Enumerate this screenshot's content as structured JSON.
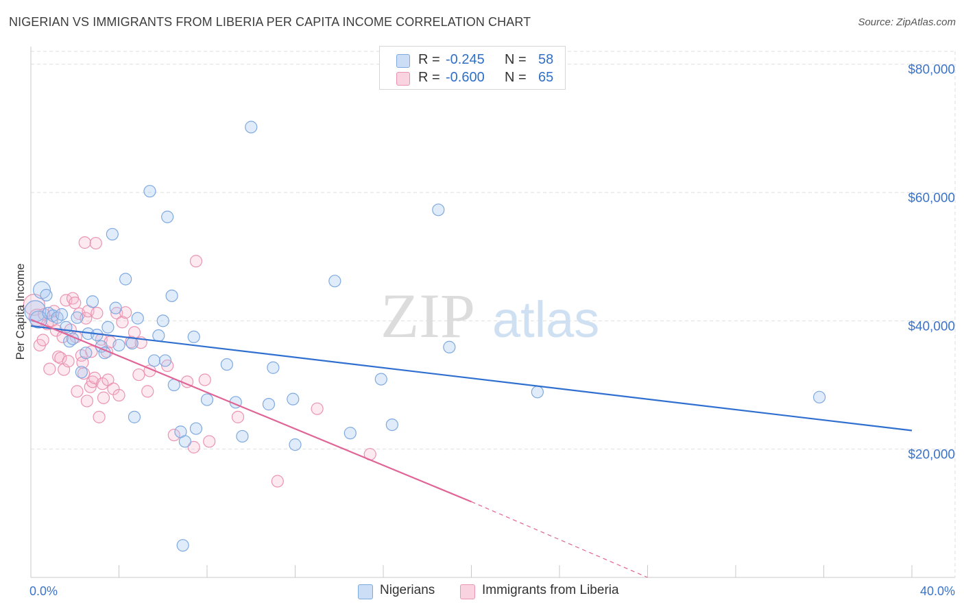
{
  "title": "NIGERIAN VS IMMIGRANTS FROM LIBERIA PER CAPITA INCOME CORRELATION CHART",
  "source": "Source: ZipAtlas.com",
  "watermark": {
    "zip": "ZIP",
    "atlas": "atlas"
  },
  "legend": {
    "r_label": "R =",
    "n_label": "N =",
    "rows": [
      {
        "r": "-0.245",
        "n": "58",
        "color": "#a9c8f0"
      },
      {
        "r": "-0.600",
        "n": "65",
        "color": "#f5b8cc"
      }
    ]
  },
  "bottom_legend": [
    {
      "label": "Nigerians",
      "color": "#a9c8f0"
    },
    {
      "label": "Immigrants from Liberia",
      "color": "#f5b8cc"
    }
  ],
  "colors": {
    "blue_fill": "rgba(169,200,240,0.35)",
    "blue_stroke": "#7ea9e0",
    "blue_line": "#2f6fd0",
    "pink_fill": "rgba(245,184,204,0.30)",
    "pink_stroke": "#eb93b2",
    "pink_line": "#e06495",
    "grid": "#dedede",
    "tick_text": "#3b73c8"
  },
  "chart_data": {
    "type": "scatter",
    "title": "NIGERIAN VS IMMIGRANTS FROM LIBERIA PER CAPITA INCOME CORRELATION CHART",
    "xlabel": "",
    "ylabel": "Per Capita Income",
    "xlim": [
      0,
      40
    ],
    "ylim": [
      0,
      82000
    ],
    "x_tick_labels": [
      {
        "value": 0,
        "label": "0.0%"
      },
      {
        "value": 40,
        "label": "40.0%"
      }
    ],
    "y_tick_labels": [
      {
        "value": 20000,
        "label": "$20,000"
      },
      {
        "value": 40000,
        "label": "$40,000"
      },
      {
        "value": 60000,
        "label": "$60,000"
      },
      {
        "value": 80000,
        "label": "$80,000"
      }
    ],
    "grid": true,
    "series": [
      {
        "name": "Nigerians",
        "r": -0.245,
        "n": 58,
        "trend": {
          "x": [
            0,
            40
          ],
          "y": [
            39200,
            22900
          ]
        },
        "points": [
          [
            0.2,
            41500,
            2.5
          ],
          [
            0.35,
            40200,
            1.5
          ],
          [
            0.5,
            44800,
            1.5
          ],
          [
            0.7,
            44000,
            1
          ],
          [
            0.8,
            41200,
            1
          ],
          [
            1.0,
            40800,
            1
          ],
          [
            1.2,
            40500,
            1
          ],
          [
            1.4,
            41000,
            1
          ],
          [
            1.6,
            39000,
            1
          ],
          [
            1.75,
            36800,
            1
          ],
          [
            1.9,
            37200,
            1
          ],
          [
            2.1,
            40500,
            1
          ],
          [
            2.3,
            32000,
            1
          ],
          [
            2.5,
            35000,
            1
          ],
          [
            2.6,
            38000,
            1
          ],
          [
            2.8,
            43000,
            1
          ],
          [
            3.0,
            37800,
            1
          ],
          [
            3.2,
            36000,
            1
          ],
          [
            3.35,
            35000,
            1
          ],
          [
            3.5,
            39000,
            1
          ],
          [
            3.7,
            53500,
            1
          ],
          [
            3.85,
            42000,
            1
          ],
          [
            4.0,
            36200,
            1
          ],
          [
            4.3,
            46500,
            1
          ],
          [
            4.6,
            36500,
            1
          ],
          [
            4.7,
            25000,
            1
          ],
          [
            4.85,
            40400,
            1
          ],
          [
            5.4,
            60200,
            1
          ],
          [
            5.6,
            33800,
            1
          ],
          [
            5.8,
            37700,
            1
          ],
          [
            6.0,
            40000,
            1
          ],
          [
            6.1,
            33800,
            1
          ],
          [
            6.2,
            56200,
            1
          ],
          [
            6.4,
            43900,
            1
          ],
          [
            6.5,
            30000,
            1
          ],
          [
            6.8,
            22700,
            1
          ],
          [
            6.9,
            5000,
            1
          ],
          [
            7.0,
            21200,
            1
          ],
          [
            7.4,
            37500,
            1
          ],
          [
            7.5,
            23200,
            1
          ],
          [
            8.0,
            27700,
            1
          ],
          [
            8.9,
            33200,
            1
          ],
          [
            9.3,
            27300,
            1
          ],
          [
            9.6,
            22000,
            1
          ],
          [
            10.0,
            70200,
            1
          ],
          [
            10.8,
            27000,
            1
          ],
          [
            11.0,
            32700,
            1
          ],
          [
            11.9,
            27800,
            1
          ],
          [
            12.0,
            20700,
            1
          ],
          [
            13.8,
            46200,
            1
          ],
          [
            14.5,
            22500,
            1
          ],
          [
            15.9,
            30900,
            1
          ],
          [
            16.4,
            23800,
            1
          ],
          [
            18.5,
            57300,
            1
          ],
          [
            19.0,
            35900,
            1
          ],
          [
            23.0,
            28900,
            1
          ],
          [
            35.8,
            28100,
            1
          ]
        ]
      },
      {
        "name": "Immigrants from Liberia",
        "r": -0.6,
        "n": 65,
        "trend": {
          "x": [
            0,
            20
          ],
          "y": [
            40200,
            11800
          ]
        },
        "trend_dashed": {
          "x": [
            20,
            28
          ],
          "y": [
            11800,
            0
          ]
        },
        "points": [
          [
            0.15,
            42500,
            2.5
          ],
          [
            0.3,
            40500,
            1.5
          ],
          [
            0.4,
            36200,
            1
          ],
          [
            0.55,
            37000,
            1
          ],
          [
            0.6,
            41000,
            1
          ],
          [
            0.75,
            39500,
            1
          ],
          [
            0.85,
            32500,
            1
          ],
          [
            0.95,
            40000,
            1
          ],
          [
            1.05,
            41500,
            1
          ],
          [
            1.15,
            38500,
            1
          ],
          [
            1.25,
            34400,
            1
          ],
          [
            1.35,
            34200,
            1
          ],
          [
            1.45,
            37500,
            1
          ],
          [
            1.5,
            32400,
            1
          ],
          [
            1.6,
            43200,
            1
          ],
          [
            1.7,
            33700,
            1
          ],
          [
            1.8,
            38600,
            1
          ],
          [
            1.9,
            43500,
            1
          ],
          [
            2.0,
            42800,
            1
          ],
          [
            2.05,
            37500,
            1
          ],
          [
            2.1,
            29000,
            1
          ],
          [
            2.2,
            41100,
            1
          ],
          [
            2.3,
            34600,
            1
          ],
          [
            2.35,
            33500,
            1
          ],
          [
            2.4,
            31800,
            1
          ],
          [
            2.45,
            52200,
            1
          ],
          [
            2.5,
            40400,
            1
          ],
          [
            2.55,
            27500,
            1
          ],
          [
            2.6,
            41500,
            1
          ],
          [
            2.7,
            29700,
            1
          ],
          [
            2.75,
            35200,
            1
          ],
          [
            2.8,
            30500,
            1
          ],
          [
            2.9,
            31100,
            1
          ],
          [
            2.95,
            52100,
            1
          ],
          [
            3.0,
            41200,
            1
          ],
          [
            3.1,
            25000,
            1
          ],
          [
            3.2,
            37100,
            1
          ],
          [
            3.25,
            30200,
            1
          ],
          [
            3.3,
            28000,
            1
          ],
          [
            3.45,
            35200,
            1
          ],
          [
            3.5,
            30800,
            1
          ],
          [
            3.6,
            36700,
            1
          ],
          [
            3.75,
            29400,
            1
          ],
          [
            3.9,
            41200,
            1
          ],
          [
            4.0,
            28400,
            1
          ],
          [
            4.15,
            39800,
            1
          ],
          [
            4.3,
            41300,
            1
          ],
          [
            4.55,
            36700,
            1
          ],
          [
            4.7,
            38200,
            1
          ],
          [
            4.9,
            31600,
            1
          ],
          [
            5.0,
            36600,
            1
          ],
          [
            5.3,
            29000,
            1
          ],
          [
            5.4,
            32200,
            1
          ],
          [
            6.2,
            33000,
            1
          ],
          [
            6.5,
            22200,
            1
          ],
          [
            7.1,
            30500,
            1
          ],
          [
            7.4,
            20300,
            1
          ],
          [
            7.5,
            49300,
            1
          ],
          [
            7.9,
            30800,
            1
          ],
          [
            8.1,
            21200,
            1
          ],
          [
            9.4,
            25000,
            1
          ],
          [
            11.2,
            15000,
            1
          ],
          [
            13.0,
            26300,
            1
          ],
          [
            15.4,
            19200,
            1
          ]
        ]
      }
    ]
  }
}
